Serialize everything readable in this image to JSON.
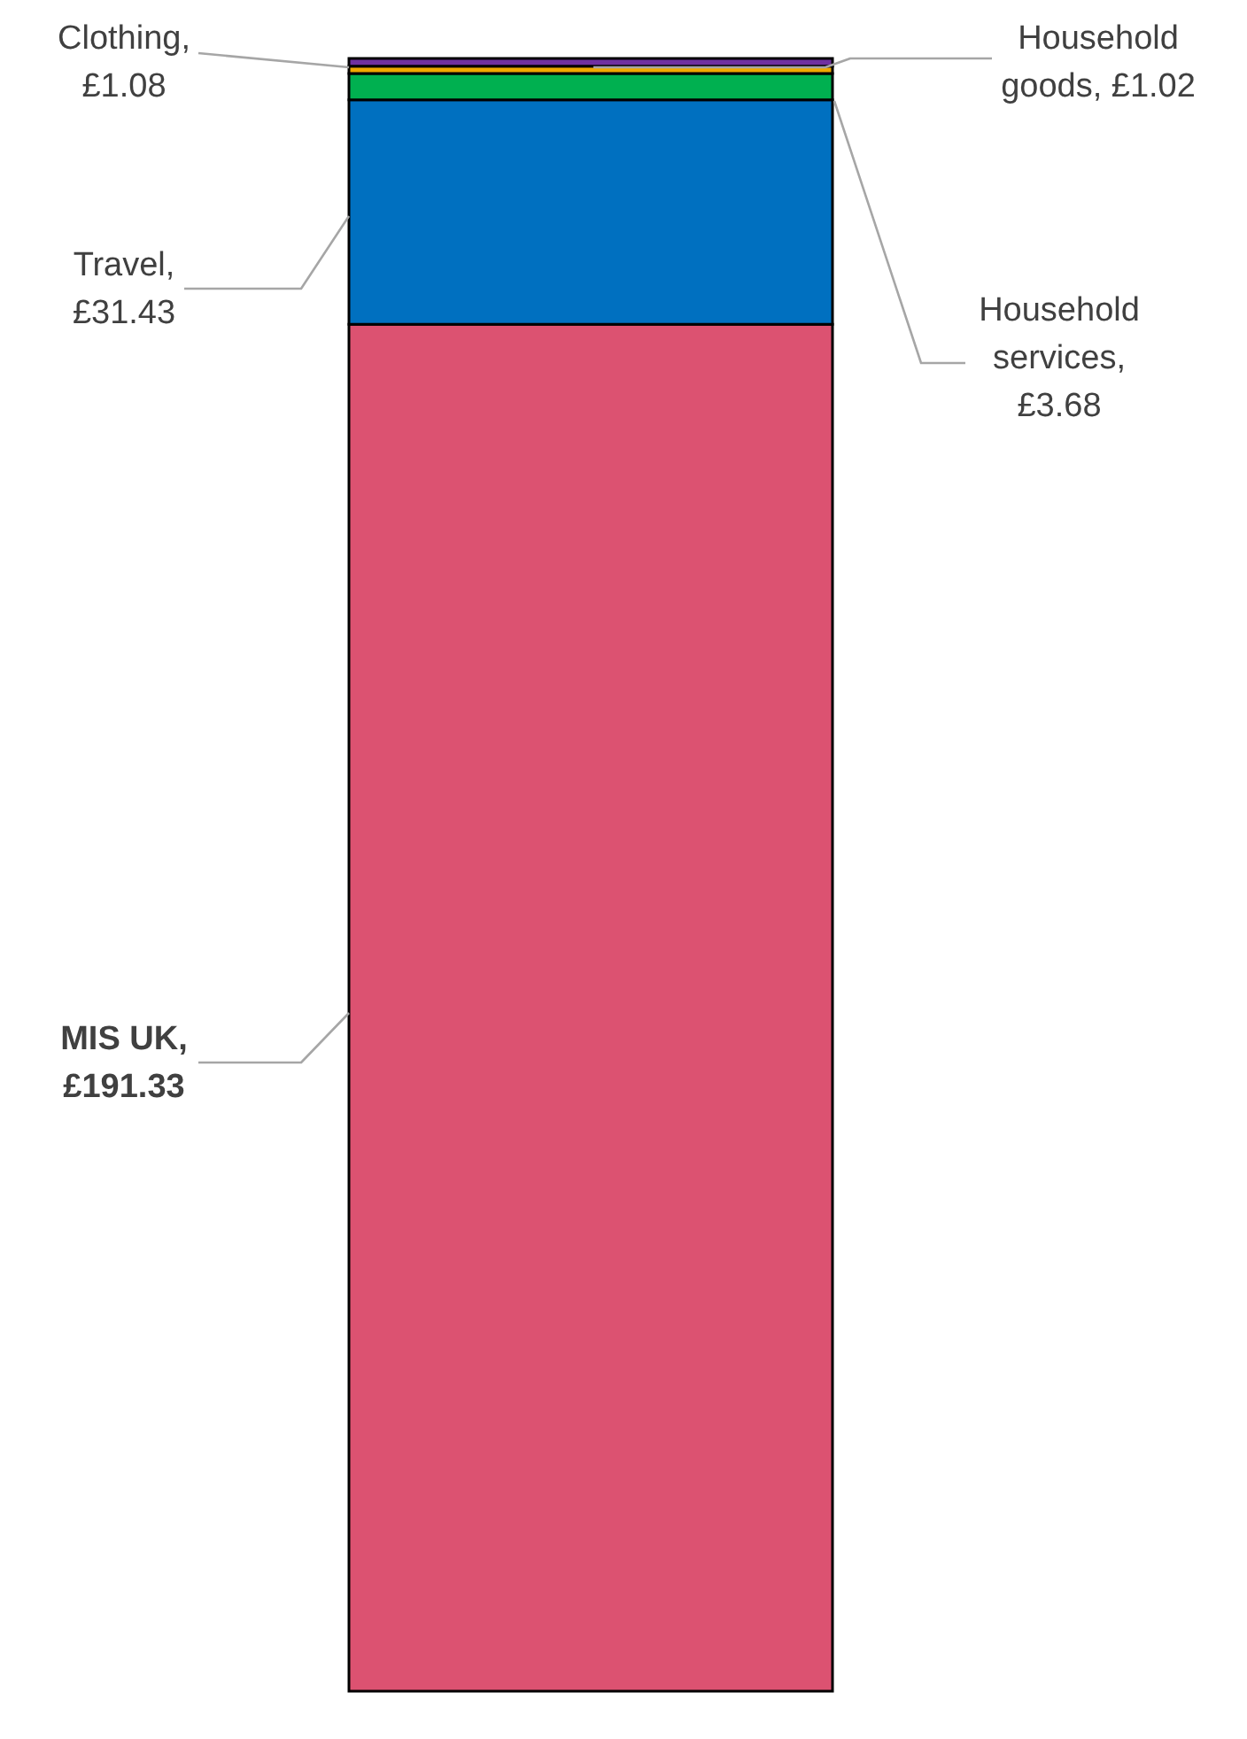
{
  "chart_data": {
    "type": "bar",
    "stacked": true,
    "categories": [
      null
    ],
    "series": [
      {
        "color": "#dc5271",
        "values": [
          191.33
        ],
        "value_labels": [
          "MIS UK, £191.33"
        ]
      },
      {
        "color": "#0070c0",
        "values": [
          31.43
        ],
        "value_labels": [
          "Travel, £31.43"
        ]
      },
      {
        "color": "#00b050",
        "values": [
          3.68
        ],
        "value_labels": [
          "Household services, £3.68"
        ]
      },
      {
        "color": "#f0a800",
        "values": [
          1.02
        ],
        "value_labels": [
          "Household goods, £1.02"
        ]
      },
      {
        "color": "#7030a0",
        "values": [
          1.08
        ],
        "value_labels": [
          "Clothing, £1.08"
        ]
      }
    ]
  }
}
